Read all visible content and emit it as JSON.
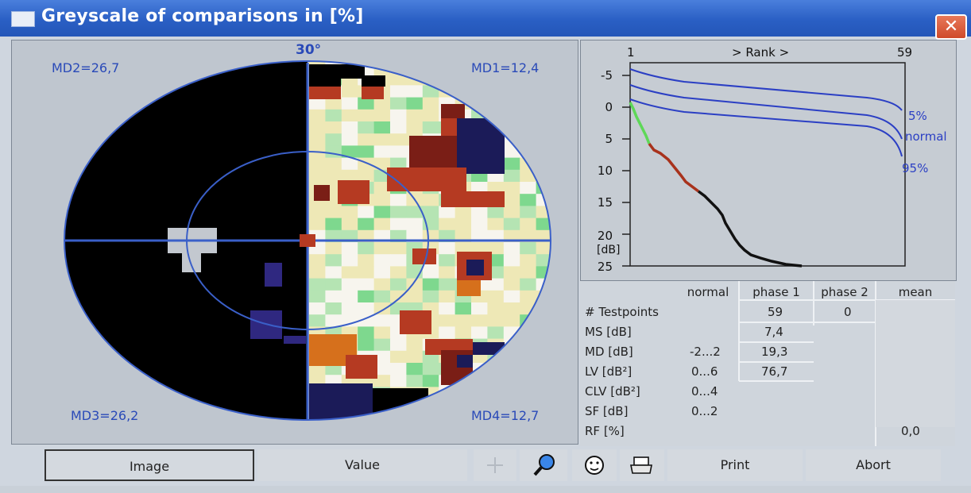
{
  "window": {
    "title": "Greyscale of comparisons in [%]",
    "close_symbol": "✕"
  },
  "field": {
    "angle_label": "30°",
    "md_labels": {
      "md1": "MD1=12,4",
      "md2": "MD2=26,7",
      "md3": "MD3=26,2",
      "md4": "MD4=12,7"
    },
    "colors": {
      "black": "#000000",
      "white": "#f7f5ee",
      "yellow": "#eee8b6",
      "green": "#7ed88e",
      "lightgreen": "#b5e4b3",
      "red": "#b53a22",
      "darkred": "#7a1e16",
      "orange": "#d6701c",
      "navy": "#1b1b58",
      "purple": "#2f2880",
      "grey": "#c3c8cf",
      "border": "#3a5fc8"
    }
  },
  "rank_graph": {
    "rank_start": "1",
    "rank_label": "> Rank >",
    "rank_end": "59",
    "y_ticks": [
      "-5",
      "0",
      "5",
      "10",
      "15",
      "20",
      "25"
    ],
    "y_unit": "[dB]",
    "curve_labels": [
      "5%",
      "normal",
      "95%"
    ]
  },
  "table": {
    "headers": [
      "normal",
      "phase 1",
      "phase 2",
      "mean"
    ],
    "rows": [
      {
        "label": "# Testpoints",
        "normal": "",
        "phase1": "59",
        "phase2": "0",
        "mean": ""
      },
      {
        "label": "MS [dB]",
        "normal": "",
        "phase1": "7,4",
        "phase2": "",
        "mean": ""
      },
      {
        "label": "MD [dB]",
        "normal": "-2...2",
        "phase1": "19,3",
        "phase2": "",
        "mean": ""
      },
      {
        "label": "LV [dB²]",
        "normal": "0...6",
        "phase1": "76,7",
        "phase2": "",
        "mean": ""
      },
      {
        "label": "CLV [dB²]",
        "normal": "0...4",
        "phase1": "",
        "phase2": "",
        "mean": ""
      },
      {
        "label": "SF [dB]",
        "normal": "0...2",
        "phase1": "",
        "phase2": "",
        "mean": ""
      },
      {
        "label": "RF [%]",
        "normal": "",
        "phase1": "",
        "phase2": "",
        "mean": "0,0"
      }
    ]
  },
  "buttons": {
    "image": "Image",
    "value": "Value",
    "print": "Print",
    "abort": "Abort"
  }
}
